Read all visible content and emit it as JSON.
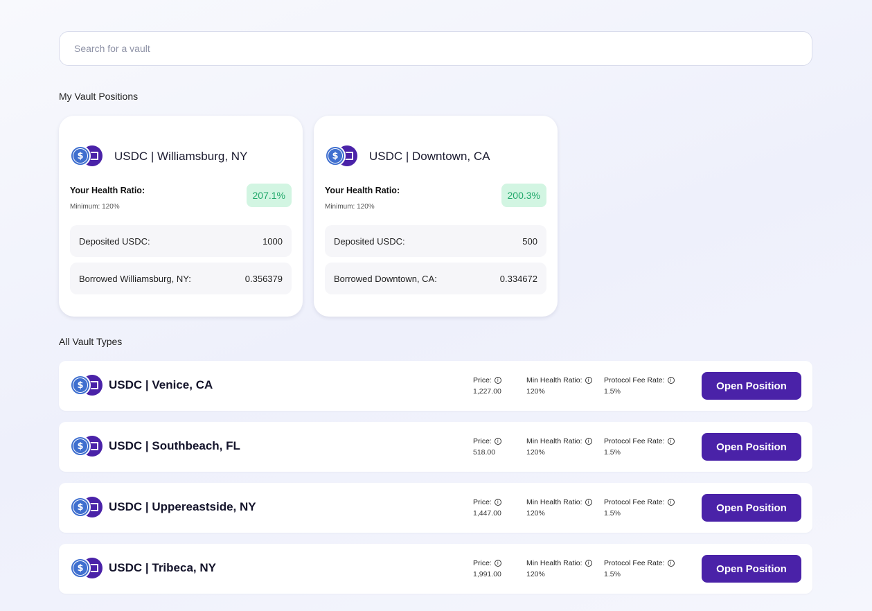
{
  "search": {
    "placeholder": "Search for a vault"
  },
  "sections": {
    "my_positions": "My Vault Positions",
    "all_types": "All Vault Types"
  },
  "positions": [
    {
      "title": "USDC | Williamsburg, NY",
      "health_label": "Your Health Ratio:",
      "health_min": "Minimum: 120%",
      "health_value": "207.1%",
      "deposited_label": "Deposited USDC:",
      "deposited_value": "1000",
      "borrowed_label": "Borrowed Williamsburg, NY:",
      "borrowed_value": "0.356379"
    },
    {
      "title": "USDC | Downtown, CA",
      "health_label": "Your Health Ratio:",
      "health_min": "Minimum: 120%",
      "health_value": "200.3%",
      "deposited_label": "Deposited USDC:",
      "deposited_value": "500",
      "borrowed_label": "Borrowed Downtown, CA:",
      "borrowed_value": "0.334672"
    }
  ],
  "vault_labels": {
    "price": "Price:",
    "min_health": "Min Health Ratio:",
    "fee": "Protocol Fee Rate:",
    "button": "Open Position"
  },
  "vaults": [
    {
      "name": "USDC | Venice, CA",
      "price": "1,227.00",
      "min_health": "120%",
      "fee": "1.5%"
    },
    {
      "name": "USDC | Southbeach, FL",
      "price": "518.00",
      "min_health": "120%",
      "fee": "1.5%"
    },
    {
      "name": "USDC | Uppereastside, NY",
      "price": "1,447.00",
      "min_health": "120%",
      "fee": "1.5%"
    },
    {
      "name": "USDC | Tribeca, NY",
      "price": "1,991.00",
      "min_health": "120%",
      "fee": "1.5%"
    }
  ],
  "icons": {
    "usdc": "usdc-coin-icon",
    "vault": "vault-token-icon",
    "info": "info-icon"
  },
  "colors": {
    "accent": "#4a22a8",
    "health_bg": "#d2f5e2",
    "health_text": "#20a86a",
    "usdc": "#3f6fcf"
  }
}
